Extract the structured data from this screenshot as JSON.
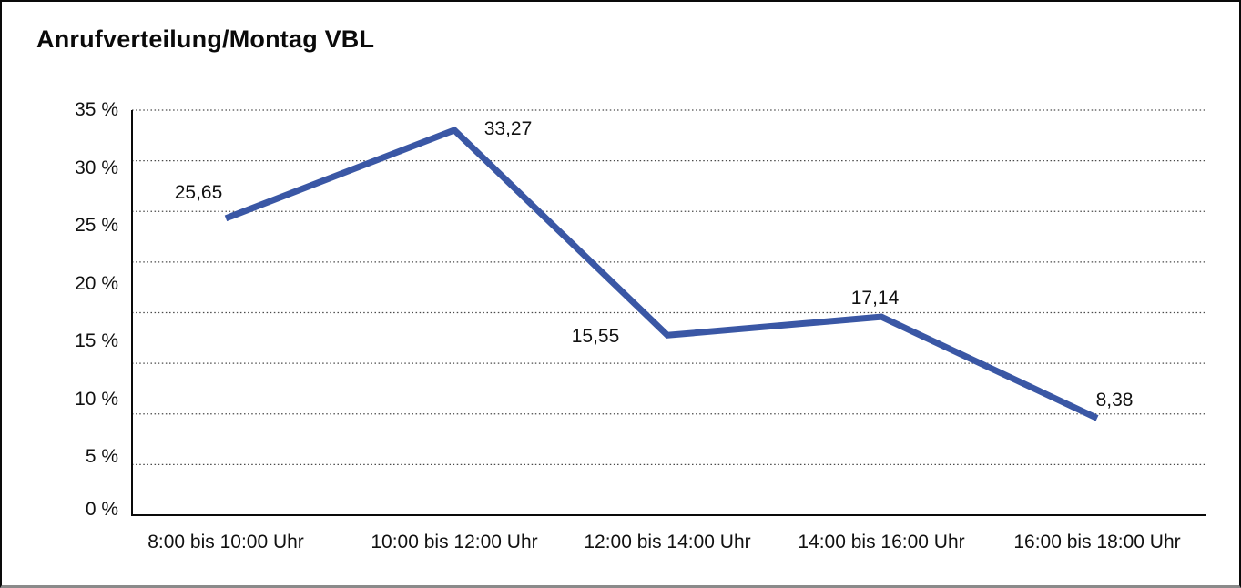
{
  "chart_data": {
    "type": "line",
    "title": "Anrufverteilung/Montag VBL",
    "categories": [
      "8:00 bis 10:00 Uhr",
      "10:00 bis 12:00 Uhr",
      "12:00 bis 14:00 Uhr",
      "14:00 bis 16:00 Uhr",
      "16:00 bis 18:00 Uhr"
    ],
    "values": [
      25.65,
      33.27,
      15.55,
      17.14,
      8.38
    ],
    "point_labels": [
      "25,65",
      "33,27",
      "15,55",
      "17,14",
      "8,38"
    ],
    "y_tick_values": [
      35,
      30,
      25,
      20,
      15,
      10,
      5,
      0
    ],
    "y_tick_labels": [
      "35 %",
      "30 %",
      "25 %",
      "20 %",
      "15 %",
      "10 %",
      "5 %",
      "0 %"
    ],
    "ylim": [
      0,
      35
    ],
    "xlabel": "",
    "ylabel": "",
    "legend": "none",
    "grid": "horizontal-dotted",
    "gridline_count": 8,
    "line_color": "#3A57A5",
    "axis_color": "#0a0a0a",
    "gridline_color": "#4a4a4a",
    "background_color": "#ffffff"
  }
}
